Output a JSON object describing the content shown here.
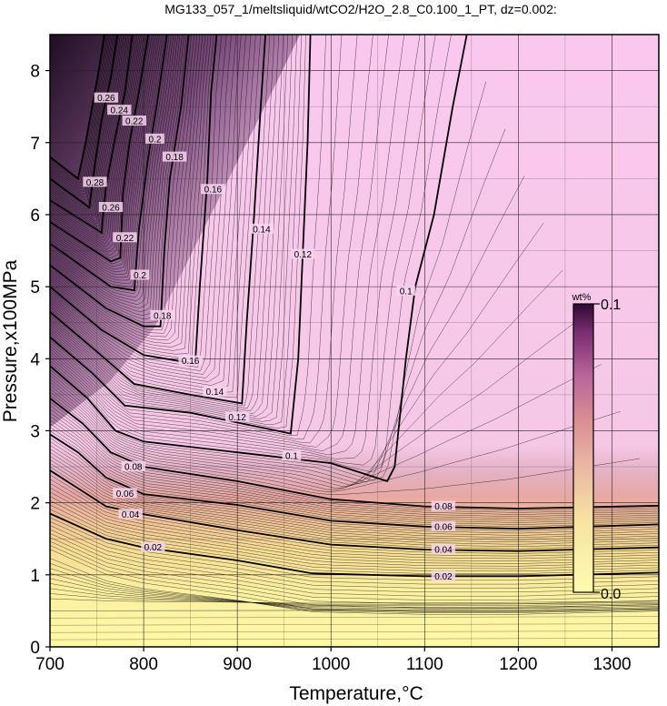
{
  "chart_data": {
    "type": "contour",
    "title": "MG133_057_1/meltsliquid/wtCO2/H2O_2.8_C0.100_1_PT, dz=0.002:",
    "xlabel": "Temperature,°C",
    "ylabel": "Pressure,x100MPa",
    "xlim": [
      700,
      1350
    ],
    "ylim": [
      0,
      8.5
    ],
    "x_ticks": [
      700,
      800,
      900,
      1000,
      1100,
      1200,
      1300
    ],
    "y_ticks": [
      0,
      1,
      2,
      3,
      4,
      5,
      6,
      7,
      8
    ],
    "grid": true,
    "contour_interval": 0.002,
    "colorbar": {
      "unit": "wt%",
      "min": 0.0,
      "max": 0.1,
      "min_label": "0.0",
      "max_label": "0.1",
      "colors": [
        "#fffaa8",
        "#f6e28f",
        "#ecb29a",
        "#d98a8c",
        "#b8638f",
        "#7a2b6e",
        "#2e0b34"
      ]
    },
    "contour_labels": [
      {
        "value": "0.02",
        "x": 1120,
        "y": 0.98
      },
      {
        "value": "0.04",
        "x": 1120,
        "y": 1.35
      },
      {
        "value": "0.06",
        "x": 1120,
        "y": 1.67
      },
      {
        "value": "0.08",
        "x": 1120,
        "y": 1.95
      },
      {
        "value": "0.02",
        "x": 810,
        "y": 1.38
      },
      {
        "value": "0.04",
        "x": 786,
        "y": 1.84
      },
      {
        "value": "0.06",
        "x": 780,
        "y": 2.13
      },
      {
        "value": "0.08",
        "x": 789,
        "y": 2.5
      },
      {
        "value": "0.1",
        "x": 958,
        "y": 2.65
      },
      {
        "value": "0.12",
        "x": 900,
        "y": 3.19
      },
      {
        "value": "0.14",
        "x": 876,
        "y": 3.54
      },
      {
        "value": "0.16",
        "x": 850,
        "y": 3.97
      },
      {
        "value": "0.18",
        "x": 820,
        "y": 4.6
      },
      {
        "value": "0.2",
        "x": 796,
        "y": 5.16
      },
      {
        "value": "0.22",
        "x": 780,
        "y": 5.68
      },
      {
        "value": "0.26",
        "x": 765,
        "y": 6.1
      },
      {
        "value": "0.28",
        "x": 748,
        "y": 6.45
      },
      {
        "value": "0.1",
        "x": 1080,
        "y": 4.94
      },
      {
        "value": "0.12",
        "x": 970,
        "y": 5.45
      },
      {
        "value": "0.14",
        "x": 926,
        "y": 5.8
      },
      {
        "value": "0.16",
        "x": 874,
        "y": 6.35
      },
      {
        "value": "0.18",
        "x": 833,
        "y": 6.8
      },
      {
        "value": "0.2",
        "x": 812,
        "y": 7.05
      },
      {
        "value": "0.22",
        "x": 790,
        "y": 7.3
      },
      {
        "value": "0.24",
        "x": 774,
        "y": 7.45
      },
      {
        "value": "0.26",
        "x": 760,
        "y": 7.62
      }
    ],
    "bold_contours": [
      {
        "value": 0.02,
        "points": [
          [
            700,
            1.85
          ],
          [
            760,
            1.5
          ],
          [
            800,
            1.38
          ],
          [
            900,
            1.2
          ],
          [
            980,
            1.02
          ],
          [
            1100,
            0.98
          ],
          [
            1200,
            0.98
          ],
          [
            1350,
            1.03
          ]
        ]
      },
      {
        "value": 0.04,
        "points": [
          [
            700,
            2.45
          ],
          [
            730,
            2.2
          ],
          [
            760,
            1.95
          ],
          [
            800,
            1.84
          ],
          [
            900,
            1.62
          ],
          [
            1000,
            1.42
          ],
          [
            1100,
            1.35
          ],
          [
            1200,
            1.33
          ],
          [
            1350,
            1.38
          ]
        ]
      },
      {
        "value": 0.06,
        "points": [
          [
            700,
            2.95
          ],
          [
            730,
            2.7
          ],
          [
            760,
            2.35
          ],
          [
            800,
            2.12
          ],
          [
            900,
            1.97
          ],
          [
            1000,
            1.75
          ],
          [
            1100,
            1.67
          ],
          [
            1200,
            1.64
          ],
          [
            1350,
            1.7
          ]
        ]
      },
      {
        "value": 0.08,
        "points": [
          [
            700,
            3.45
          ],
          [
            735,
            3.1
          ],
          [
            765,
            2.7
          ],
          [
            800,
            2.5
          ],
          [
            900,
            2.3
          ],
          [
            1000,
            2.05
          ],
          [
            1100,
            1.95
          ],
          [
            1200,
            1.92
          ],
          [
            1350,
            1.96
          ]
        ]
      },
      {
        "value": 0.1,
        "points": [
          [
            700,
            3.9
          ],
          [
            740,
            3.45
          ],
          [
            770,
            3.0
          ],
          [
            800,
            2.85
          ],
          [
            900,
            2.7
          ],
          [
            1000,
            2.55
          ],
          [
            1060,
            2.3
          ],
          [
            1068,
            2.5
          ],
          [
            1080,
            4.0
          ],
          [
            1090,
            5.0
          ],
          [
            1110,
            6.0
          ],
          [
            1130,
            7.5
          ],
          [
            1145,
            8.5
          ]
        ]
      },
      {
        "value": 0.12,
        "points": [
          [
            700,
            4.3
          ],
          [
            745,
            3.8
          ],
          [
            780,
            3.35
          ],
          [
            850,
            3.25
          ],
          [
            957,
            2.96
          ],
          [
            965,
            4.0
          ],
          [
            970,
            5.5
          ],
          [
            975,
            7.0
          ],
          [
            978,
            8.5
          ]
        ]
      },
      {
        "value": 0.14,
        "points": [
          [
            700,
            4.65
          ],
          [
            750,
            4.1
          ],
          [
            790,
            3.65
          ],
          [
            850,
            3.5
          ],
          [
            905,
            3.38
          ],
          [
            910,
            4.5
          ],
          [
            918,
            6.0
          ],
          [
            925,
            7.5
          ],
          [
            930,
            8.5
          ]
        ]
      },
      {
        "value": 0.16,
        "points": [
          [
            700,
            5.0
          ],
          [
            755,
            4.4
          ],
          [
            800,
            4.05
          ],
          [
            855,
            3.93
          ],
          [
            860,
            5.0
          ],
          [
            868,
            6.5
          ],
          [
            872,
            7.7
          ],
          [
            878,
            8.5
          ]
        ]
      },
      {
        "value": 0.18,
        "points": [
          [
            700,
            5.3
          ],
          [
            760,
            4.7
          ],
          [
            800,
            4.45
          ],
          [
            818,
            4.45
          ],
          [
            822,
            5.5
          ],
          [
            828,
            6.5
          ],
          [
            840,
            7.5
          ],
          [
            848,
            8.5
          ]
        ]
      },
      {
        "value": 0.2,
        "points": [
          [
            700,
            5.6
          ],
          [
            765,
            5.0
          ],
          [
            790,
            4.95
          ],
          [
            795,
            5.8
          ],
          [
            805,
            6.8
          ],
          [
            815,
            7.6
          ],
          [
            825,
            8.5
          ]
        ]
      },
      {
        "value": 0.22,
        "points": [
          [
            700,
            5.9
          ],
          [
            765,
            5.35
          ],
          [
            775,
            5.4
          ],
          [
            778,
            6.3
          ],
          [
            785,
            7.0
          ],
          [
            795,
            7.7
          ],
          [
            805,
            8.5
          ]
        ]
      },
      {
        "value": 0.24,
        "points": [
          [
            700,
            6.2
          ],
          [
            755,
            5.75
          ],
          [
            760,
            6.4
          ],
          [
            770,
            7.1
          ],
          [
            780,
            7.7
          ],
          [
            788,
            8.5
          ]
        ]
      },
      {
        "value": 0.26,
        "points": [
          [
            700,
            6.5
          ],
          [
            742,
            6.1
          ],
          [
            748,
            6.7
          ],
          [
            755,
            7.3
          ],
          [
            765,
            7.9
          ],
          [
            772,
            8.5
          ]
        ]
      },
      {
        "value": 0.28,
        "points": [
          [
            700,
            6.8
          ],
          [
            730,
            6.5
          ],
          [
            738,
            7.0
          ],
          [
            745,
            7.5
          ],
          [
            752,
            8.0
          ],
          [
            758,
            8.5
          ]
        ]
      }
    ]
  }
}
